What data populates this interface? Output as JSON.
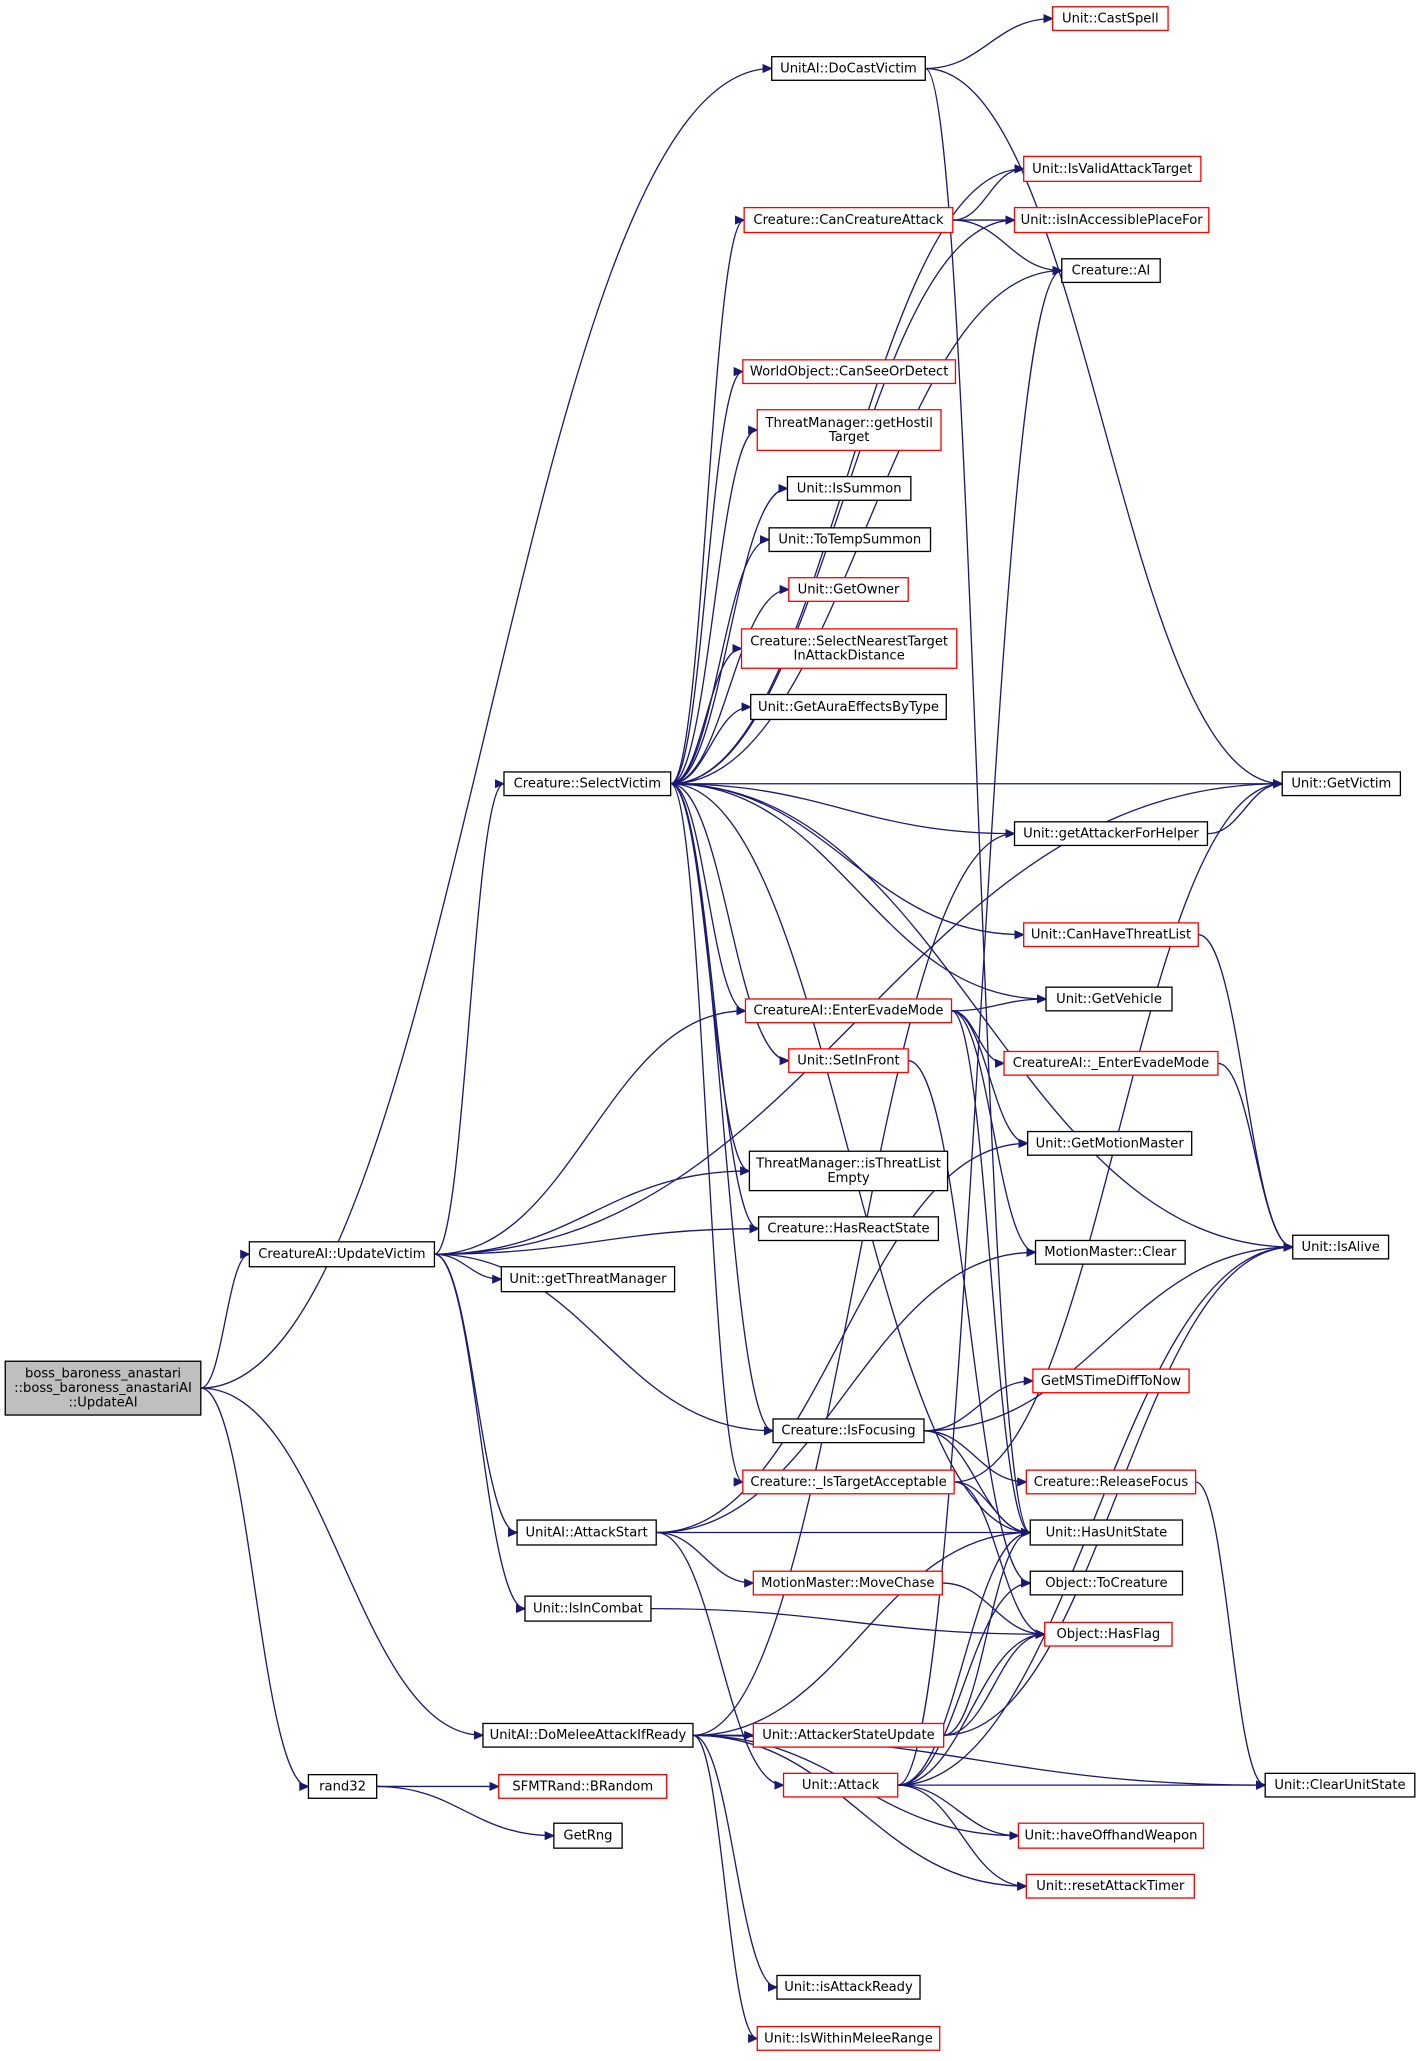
{
  "colors": {
    "edge": "#191970",
    "external_border": "#ff0000",
    "internal_border": "#000000",
    "root_fill": "#bfbfbf"
  },
  "nodes": [
    {
      "id": "root",
      "lines": [
        "boss_baroness_anastari",
        "::boss_baroness_anastariAI",
        "::UpdateAI"
      ],
      "root": true
    },
    {
      "id": "castspell",
      "lines": [
        "Unit::CastSpell"
      ],
      "red": true
    },
    {
      "id": "docastvictim",
      "lines": [
        "UnitAI::DoCastVictim"
      ]
    },
    {
      "id": "isvalidattacktarget",
      "lines": [
        "Unit::IsValidAttackTarget"
      ],
      "red": true
    },
    {
      "id": "cancreatureattack",
      "lines": [
        "Creature::CanCreatureAttack"
      ],
      "red": true
    },
    {
      "id": "isinaccessible",
      "lines": [
        "Unit::isInAccessiblePlaceFor"
      ],
      "red": true
    },
    {
      "id": "creatureai",
      "lines": [
        "Creature::AI"
      ]
    },
    {
      "id": "canseeordetect",
      "lines": [
        "WorldObject::CanSeeOrDetect"
      ],
      "red": true
    },
    {
      "id": "gethostiltarget",
      "lines": [
        "ThreatManager::getHostil",
        "Target"
      ],
      "red": true
    },
    {
      "id": "issummon",
      "lines": [
        "Unit::IsSummon"
      ]
    },
    {
      "id": "totempsummon",
      "lines": [
        "Unit::ToTempSummon"
      ]
    },
    {
      "id": "getowner",
      "lines": [
        "Unit::GetOwner"
      ],
      "red": true
    },
    {
      "id": "selectnearest",
      "lines": [
        "Creature::SelectNearestTarget",
        "InAttackDistance"
      ],
      "red": true
    },
    {
      "id": "getauraeffects",
      "lines": [
        "Unit::GetAuraEffectsByType"
      ]
    },
    {
      "id": "selectvictim",
      "lines": [
        "Creature::SelectVictim"
      ]
    },
    {
      "id": "getvictim",
      "lines": [
        "Unit::GetVictim"
      ]
    },
    {
      "id": "getattackerforhelper",
      "lines": [
        "Unit::getAttackerForHelper"
      ]
    },
    {
      "id": "canhavethreatlist",
      "lines": [
        "Unit::CanHaveThreatList"
      ],
      "red": true
    },
    {
      "id": "getvehicle",
      "lines": [
        "Unit::GetVehicle"
      ]
    },
    {
      "id": "enterevademode",
      "lines": [
        "CreatureAI::EnterEvadeMode"
      ],
      "red": true
    },
    {
      "id": "setinfront",
      "lines": [
        "Unit::SetInFront"
      ],
      "red": true
    },
    {
      "id": "_enterevademode",
      "lines": [
        "CreatureAI::_EnterEvadeMode"
      ],
      "red": true
    },
    {
      "id": "getmotionmaster",
      "lines": [
        "Unit::GetMotionMaster"
      ]
    },
    {
      "id": "isthreatlistempty",
      "lines": [
        "ThreatManager::isThreatList",
        "Empty"
      ]
    },
    {
      "id": "hasreactstate",
      "lines": [
        "Creature::HasReactState"
      ]
    },
    {
      "id": "isalive",
      "lines": [
        "Unit::IsAlive"
      ]
    },
    {
      "id": "updatevictim",
      "lines": [
        "CreatureAI::UpdateVictim"
      ]
    },
    {
      "id": "mmclear",
      "lines": [
        "MotionMaster::Clear"
      ]
    },
    {
      "id": "getthreatmanager",
      "lines": [
        "Unit::getThreatManager"
      ]
    },
    {
      "id": "getmstimediff",
      "lines": [
        "GetMSTimeDiffToNow"
      ],
      "red": true
    },
    {
      "id": "isfocusing",
      "lines": [
        "Creature::IsFocusing"
      ]
    },
    {
      "id": "istargetacceptable",
      "lines": [
        "Creature::_IsTargetAcceptable"
      ],
      "red": true
    },
    {
      "id": "releasefocus",
      "lines": [
        "Creature::ReleaseFocus"
      ],
      "red": true
    },
    {
      "id": "attackstart",
      "lines": [
        "UnitAI::AttackStart"
      ]
    },
    {
      "id": "hasunitstate",
      "lines": [
        "Unit::HasUnitState"
      ]
    },
    {
      "id": "movechase",
      "lines": [
        "MotionMaster::MoveChase"
      ],
      "red": true
    },
    {
      "id": "tocreature",
      "lines": [
        "Object::ToCreature"
      ]
    },
    {
      "id": "isincombat",
      "lines": [
        "Unit::IsInCombat"
      ]
    },
    {
      "id": "hasflag",
      "lines": [
        "Object::HasFlag"
      ],
      "red": true
    },
    {
      "id": "domelee",
      "lines": [
        "UnitAI::DoMeleeAttackIfReady"
      ]
    },
    {
      "id": "attackerstateupdate",
      "lines": [
        "Unit::AttackerStateUpdate"
      ],
      "red": true
    },
    {
      "id": "rand32",
      "lines": [
        "rand32"
      ]
    },
    {
      "id": "brandom",
      "lines": [
        "SFMTRand::BRandom"
      ],
      "red": true
    },
    {
      "id": "attack",
      "lines": [
        "Unit::Attack"
      ],
      "red": true
    },
    {
      "id": "clearunitstate",
      "lines": [
        "Unit::ClearUnitState"
      ]
    },
    {
      "id": "getrng",
      "lines": [
        "GetRng"
      ]
    },
    {
      "id": "haveoffhand",
      "lines": [
        "Unit::haveOffhandWeapon"
      ],
      "red": true
    },
    {
      "id": "resetattacktimer",
      "lines": [
        "Unit::resetAttackTimer"
      ],
      "red": true
    },
    {
      "id": "isattackready",
      "lines": [
        "Unit::isAttackReady"
      ]
    },
    {
      "id": "iswithinmelee",
      "lines": [
        "Unit::IsWithinMeleeRange"
      ],
      "red": true
    }
  ],
  "edges": [
    [
      "root",
      "docastvictim"
    ],
    [
      "root",
      "updatevictim"
    ],
    [
      "root",
      "domelee"
    ],
    [
      "root",
      "rand32"
    ],
    [
      "docastvictim",
      "castspell"
    ],
    [
      "docastvictim",
      "getvictim"
    ],
    [
      "docastvictim",
      "hasunitstate"
    ],
    [
      "updatevictim",
      "selectvictim"
    ],
    [
      "updatevictim",
      "enterevademode"
    ],
    [
      "updatevictim",
      "isthreatlistempty"
    ],
    [
      "updatevictim",
      "hasreactstate"
    ],
    [
      "updatevictim",
      "getthreatmanager"
    ],
    [
      "updatevictim",
      "isfocusing"
    ],
    [
      "updatevictim",
      "attackstart"
    ],
    [
      "updatevictim",
      "isincombat"
    ],
    [
      "updatevictim",
      "getvictim"
    ],
    [
      "selectvictim",
      "isvalidattacktarget"
    ],
    [
      "selectvictim",
      "cancreatureattack"
    ],
    [
      "selectvictim",
      "creatureai"
    ],
    [
      "selectvictim",
      "getattackerforhelper"
    ],
    [
      "selectvictim",
      "canseeordetect"
    ],
    [
      "selectvictim",
      "gethostiltarget"
    ],
    [
      "selectvictim",
      "issummon"
    ],
    [
      "selectvictim",
      "totempsummon"
    ],
    [
      "selectvictim",
      "getowner"
    ],
    [
      "selectvictim",
      "selectnearest"
    ],
    [
      "selectvictim",
      "getauraeffects"
    ],
    [
      "selectvictim",
      "isinaccessible"
    ],
    [
      "selectvictim",
      "getvictim"
    ],
    [
      "selectvictim",
      "isalive"
    ],
    [
      "selectvictim",
      "canhavethreatlist"
    ],
    [
      "selectvictim",
      "getvehicle"
    ],
    [
      "selectvictim",
      "enterevademode"
    ],
    [
      "selectvictim",
      "setinfront"
    ],
    [
      "selectvictim",
      "hasunitstate"
    ],
    [
      "selectvictim",
      "isthreatlistempty"
    ],
    [
      "selectvictim",
      "hasreactstate"
    ],
    [
      "selectvictim",
      "isfocusing"
    ],
    [
      "selectvictim",
      "istargetacceptable"
    ],
    [
      "cancreatureattack",
      "isvalidattacktarget"
    ],
    [
      "cancreatureattack",
      "isinaccessible"
    ],
    [
      "cancreatureattack",
      "creatureai"
    ],
    [
      "getattackerforhelper",
      "getvictim"
    ],
    [
      "canhavethreatlist",
      "isalive"
    ],
    [
      "enterevademode",
      "getvehicle"
    ],
    [
      "enterevademode",
      "_enterevademode"
    ],
    [
      "enterevademode",
      "getmotionmaster"
    ],
    [
      "enterevademode",
      "mmclear"
    ],
    [
      "enterevademode",
      "hasunitstate"
    ],
    [
      "_enterevademode",
      "isalive"
    ],
    [
      "setinfront",
      "tocreature"
    ],
    [
      "isfocusing",
      "getmstimediff"
    ],
    [
      "isfocusing",
      "releasefocus"
    ],
    [
      "isfocusing",
      "isalive"
    ],
    [
      "isfocusing",
      "hasunitstate"
    ],
    [
      "releasefocus",
      "clearunitstate"
    ],
    [
      "istargetacceptable",
      "getvictim"
    ],
    [
      "istargetacceptable",
      "hasunitstate"
    ],
    [
      "istargetacceptable",
      "hasflag"
    ],
    [
      "attackstart",
      "hasunitstate"
    ],
    [
      "attackstart",
      "movechase"
    ],
    [
      "attackstart",
      "attack"
    ],
    [
      "attackstart",
      "getmotionmaster"
    ],
    [
      "attackstart",
      "mmclear"
    ],
    [
      "movechase",
      "hasflag"
    ],
    [
      "isincombat",
      "hasflag"
    ],
    [
      "domelee",
      "attackerstateupdate"
    ],
    [
      "domelee",
      "hasunitstate"
    ],
    [
      "domelee",
      "isattackready"
    ],
    [
      "domelee",
      "iswithinmelee"
    ],
    [
      "domelee",
      "haveoffhand"
    ],
    [
      "domelee",
      "resetattacktimer"
    ],
    [
      "domelee",
      "clearunitstate"
    ],
    [
      "domelee",
      "getattackerforhelper"
    ],
    [
      "attackerstateupdate",
      "hasunitstate"
    ],
    [
      "attackerstateupdate",
      "hasflag"
    ],
    [
      "attackerstateupdate",
      "isalive"
    ],
    [
      "attack",
      "hasunitstate"
    ],
    [
      "attack",
      "tocreature"
    ],
    [
      "attack",
      "hasflag"
    ],
    [
      "attack",
      "creatureai"
    ],
    [
      "attack",
      "clearunitstate"
    ],
    [
      "attack",
      "haveoffhand"
    ],
    [
      "attack",
      "resetattacktimer"
    ],
    [
      "attack",
      "isalive"
    ],
    [
      "rand32",
      "brandom"
    ],
    [
      "rand32",
      "getrng"
    ]
  ]
}
